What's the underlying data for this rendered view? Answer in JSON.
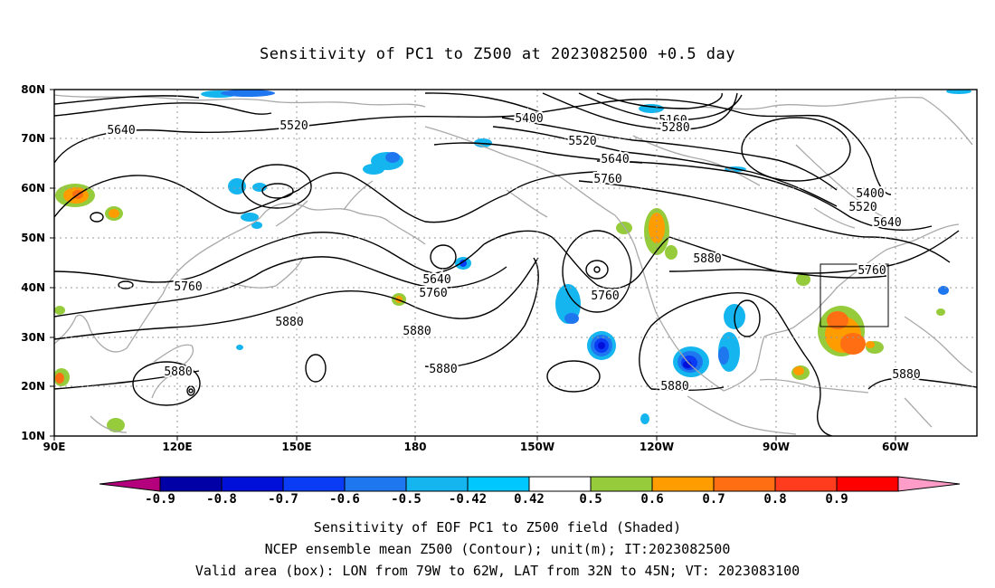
{
  "title": "Sensitivity of PC1 to Z500 at 2023082500 +0.5 day",
  "map": {
    "lat_labels": [
      "80N",
      "70N",
      "60N",
      "50N",
      "40N",
      "30N",
      "20N",
      "10N"
    ],
    "lon_labels": [
      "90E",
      "120E",
      "150E",
      "180",
      "150W",
      "120W",
      "90W",
      "60W"
    ],
    "contour_labels": [
      "5640",
      "5520",
      "5400",
      "5160",
      "5280",
      "5520",
      "5640",
      "5760",
      "5400",
      "5520",
      "5640",
      "5760",
      "5640",
      "5760",
      "5760",
      "5880",
      "5880",
      "5760",
      "5880",
      "5880",
      "5880",
      "5880",
      "5880"
    ]
  },
  "colorbar": {
    "labels": [
      "-0.9",
      "-0.8",
      "-0.7",
      "-0.6",
      "-0.5",
      "-0.42",
      "0.42",
      "0.5",
      "0.6",
      "0.7",
      "0.8",
      "0.9"
    ],
    "colors": [
      "#b4007c",
      "#0000a6",
      "#0010d8",
      "#0a3cf5",
      "#1f77f0",
      "#15b5ef",
      "#00c8ff",
      "#ffffff",
      "#96cc3c",
      "#ff9c00",
      "#ff6e12",
      "#ff3c1e",
      "#ff0000",
      "#ff9cc8"
    ]
  },
  "captions": [
    "Sensitivity of EOF PC1 to Z500 field (Shaded)",
    "NCEP ensemble mean Z500 (Contour); unit(m); IT:2023082500",
    "Valid area (box): LON from 79W to 62W, LAT from 32N to 45N; VT: 2023083100"
  ]
}
